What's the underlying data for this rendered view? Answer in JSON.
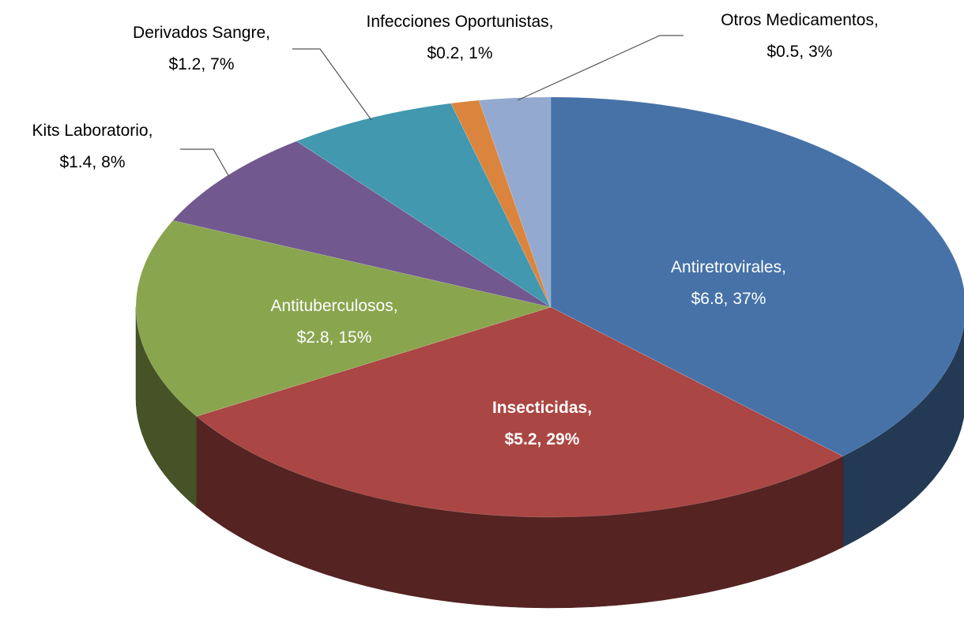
{
  "chart_data": {
    "type": "pie3d",
    "categories": [
      "Antiretrovirales",
      "Insecticidas",
      "Antituberculosos",
      "Kits Laboratorio",
      "Derivados Sangre",
      "Infecciones Oportunistas",
      "Otros Medicamentos"
    ],
    "values": [
      6.8,
      5.2,
      2.8,
      1.4,
      1.2,
      0.2,
      0.5
    ],
    "value_labels": [
      "$6.8",
      "$5.2",
      "$2.8",
      "$1.4",
      "$1.2",
      "$0.2",
      "$0.5"
    ],
    "percents": [
      37,
      29,
      15,
      8,
      7,
      1,
      3
    ],
    "percent_labels": [
      "37%",
      "29%",
      "15%",
      "8%",
      "7%",
      "1%",
      "3%"
    ],
    "label_separator": ",",
    "colors": [
      "#4672a8",
      "#aa4643",
      "#89a54e",
      "#71588f",
      "#4198af",
      "#db843d",
      "#93a9cf"
    ]
  }
}
